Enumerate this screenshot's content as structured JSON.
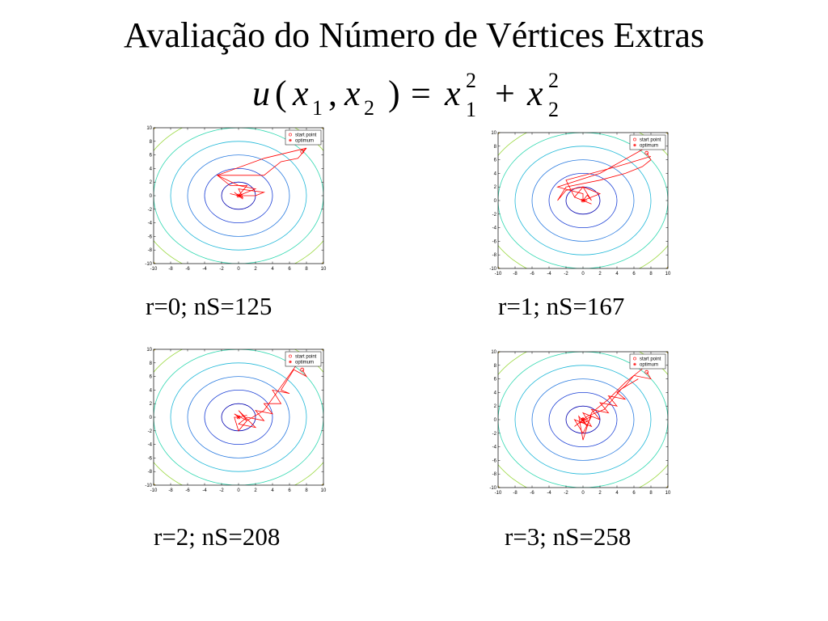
{
  "title": "Avaliação do Número de Vértices Extras",
  "formula": {
    "u": "u",
    "open": "(",
    "x": "x",
    "sub1": "1",
    "comma": ",",
    "sub2": "2",
    "close": ")",
    "equals": "=",
    "sup": "2",
    "plus": "+"
  },
  "captions": [
    "r=0; nS=125",
    "r=1; nS=167",
    "r=2; nS=208",
    "r=3; nS=258"
  ],
  "contour_colors": [
    "#0000b0",
    "#1a3fd6",
    "#2a7be0",
    "#20b8d8",
    "#30d8b0",
    "#9ad840",
    "#e8c020",
    "#f08020",
    "#e84020"
  ],
  "path_color": "#ff0000",
  "chart_data": [
    {
      "type": "line",
      "title": "",
      "xlabel": "",
      "ylabel": "",
      "xlim": [
        -10,
        10
      ],
      "ylim": [
        -10,
        10
      ],
      "xticks": [
        -10,
        -8,
        -6,
        -4,
        -2,
        0,
        2,
        4,
        6,
        8,
        10
      ],
      "yticks": [
        -10,
        -8,
        -6,
        -4,
        -2,
        0,
        2,
        4,
        6,
        8,
        10
      ],
      "contour_levels": [
        2,
        4,
        6,
        8,
        10,
        12,
        14,
        16,
        18
      ],
      "legend": [
        "start point",
        "optimum"
      ],
      "legend_position": "top-right",
      "start_point": [
        7.5,
        6.5
      ],
      "optimum": [
        0,
        0
      ],
      "series": [
        {
          "x": [
            7.5,
            8,
            7,
            5,
            3,
            0,
            -2.5,
            -1,
            1,
            0,
            0.5,
            -0.5,
            0,
            2,
            3,
            0,
            0.5,
            -0.3,
            0,
            0.5,
            0
          ],
          "y": [
            6.5,
            7,
            5.5,
            5,
            3,
            3,
            3,
            1.5,
            1.5,
            0,
            -0.5,
            0.5,
            0,
            0,
            0.5,
            1,
            -0.3,
            0.3,
            0,
            0.2,
            0
          ]
        },
        {
          "x": [
            8,
            3,
            -2.5,
            0,
            2,
            1,
            0,
            -1,
            0
          ],
          "y": [
            7,
            5.5,
            3,
            1.5,
            1,
            0.5,
            0,
            0.3,
            0
          ]
        }
      ]
    },
    {
      "type": "line",
      "title": "",
      "xlabel": "",
      "ylabel": "",
      "xlim": [
        -10,
        10
      ],
      "ylim": [
        -10,
        10
      ],
      "xticks": [
        -10,
        -8,
        -6,
        -4,
        -2,
        0,
        2,
        4,
        6,
        8,
        10
      ],
      "yticks": [
        -10,
        -8,
        -6,
        -4,
        -2,
        0,
        2,
        4,
        6,
        8,
        10
      ],
      "contour_levels": [
        2,
        4,
        6,
        8,
        10,
        12,
        14,
        16,
        18
      ],
      "legend": [
        "start point",
        "optimum"
      ],
      "legend_position": "top-right",
      "start_point": [
        7.5,
        7
      ],
      "optimum": [
        0,
        0
      ],
      "series": [
        {
          "x": [
            7.5,
            8,
            7,
            5,
            2,
            -2,
            -3,
            -2,
            0,
            2,
            0,
            1,
            -1,
            0,
            0.5,
            0
          ],
          "y": [
            7,
            6,
            5,
            4,
            3,
            2,
            0,
            1.5,
            2,
            1,
            0,
            -0.5,
            0.5,
            0,
            0,
            0
          ]
        },
        {
          "x": [
            8,
            4,
            -2,
            -1,
            0,
            1,
            0.5,
            0
          ],
          "y": [
            6.5,
            5,
            3,
            0.5,
            2,
            0,
            0.8,
            0
          ]
        },
        {
          "x": [
            7,
            2,
            -3,
            0,
            0
          ],
          "y": [
            7.5,
            4,
            2,
            1,
            0
          ]
        }
      ]
    },
    {
      "type": "line",
      "title": "",
      "xlabel": "",
      "ylabel": "",
      "xlim": [
        -10,
        10
      ],
      "ylim": [
        -10,
        10
      ],
      "xticks": [
        -10,
        -8,
        -6,
        -4,
        -2,
        0,
        2,
        4,
        6,
        8,
        10
      ],
      "yticks": [
        -10,
        -8,
        -6,
        -4,
        -2,
        0,
        2,
        4,
        6,
        8,
        10
      ],
      "contour_levels": [
        2,
        4,
        6,
        8,
        10,
        12,
        14,
        16,
        18
      ],
      "legend": [
        "start point",
        "optimum"
      ],
      "legend_position": "top-right",
      "start_point": [
        7.5,
        7
      ],
      "optimum": [
        0,
        0
      ],
      "series": [
        {
          "x": [
            7.5,
            8,
            6.5,
            5,
            6,
            4,
            5,
            3,
            4,
            2,
            3,
            1,
            0,
            2,
            0,
            1,
            -0.5,
            0,
            1,
            0
          ],
          "y": [
            7,
            6,
            7,
            4,
            3.5,
            4,
            2,
            2,
            0.5,
            1,
            -0.5,
            0,
            -1,
            -1.5,
            1,
            -0.5,
            0.5,
            0,
            0.3,
            0
          ]
        },
        {
          "x": [
            7,
            5,
            3,
            1,
            0,
            -0.5,
            0
          ],
          "y": [
            8,
            4.5,
            1,
            -0.5,
            -2,
            0,
            0
          ]
        }
      ]
    },
    {
      "type": "line",
      "title": "",
      "xlabel": "",
      "ylabel": "",
      "xlim": [
        -10,
        10
      ],
      "ylim": [
        -10,
        10
      ],
      "xticks": [
        -10,
        -8,
        -6,
        -4,
        -2,
        0,
        2,
        4,
        6,
        8,
        10
      ],
      "yticks": [
        -10,
        -8,
        -6,
        -4,
        -2,
        0,
        2,
        4,
        6,
        8,
        10
      ],
      "contour_levels": [
        2,
        4,
        6,
        8,
        10,
        12,
        14,
        16,
        18
      ],
      "legend": [
        "start point",
        "optimum"
      ],
      "legend_position": "top-right",
      "start_point": [
        7.5,
        7
      ],
      "optimum": [
        0,
        0
      ],
      "series": [
        {
          "x": [
            7.5,
            8,
            6,
            5,
            4,
            5,
            3,
            4,
            2,
            3,
            1,
            2,
            0,
            1,
            -1,
            0,
            1,
            -0.5,
            0.5,
            0,
            -0.3,
            0
          ],
          "y": [
            7,
            6,
            6.5,
            5,
            4,
            3,
            3.5,
            2,
            2.5,
            1,
            1.5,
            0,
            1,
            -1,
            0,
            -2,
            0.5,
            -0.5,
            -0.3,
            0.3,
            0,
            0
          ]
        },
        {
          "x": [
            7,
            5,
            3,
            1,
            0,
            -0.5,
            0.5,
            0
          ],
          "y": [
            7.5,
            5.5,
            3,
            1,
            -3,
            0.5,
            -1,
            0
          ]
        },
        {
          "x": [
            6.5,
            4.5,
            2.5,
            0.5,
            -1,
            0
          ],
          "y": [
            6,
            4.5,
            1.5,
            0.5,
            -1,
            0
          ]
        }
      ]
    }
  ]
}
